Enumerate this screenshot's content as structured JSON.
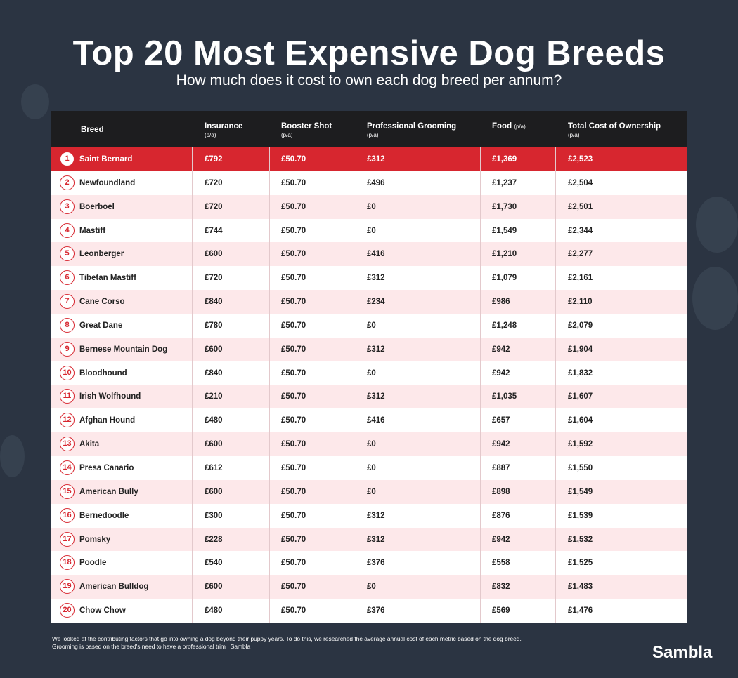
{
  "header": {
    "title": "Top 20 Most Expensive Dog Breeds",
    "subtitle": "How much does it cost to own each dog breed per annum?"
  },
  "table": {
    "columns": [
      {
        "label": "Breed"
      },
      {
        "label": "Insurance",
        "unit": "(p/a)"
      },
      {
        "label": "Booster Shot",
        "unit": "(p/a)"
      },
      {
        "label": "Professional Grooming",
        "unit": "(p/a)"
      },
      {
        "label": "Food",
        "unit": "(p/a)"
      },
      {
        "label": "Total Cost of Ownership",
        "unit": "(p/a)"
      }
    ],
    "rows": [
      [
        "1",
        "Saint Bernard",
        "£792",
        "£50.70",
        "£312",
        "£1,369",
        "£2,523"
      ],
      [
        "2",
        "Newfoundland",
        "£720",
        "£50.70",
        "£496",
        "£1,237",
        "£2,504"
      ],
      [
        "3",
        "Boerboel",
        "£720",
        "£50.70",
        "£0",
        "£1,730",
        "£2,501"
      ],
      [
        "4",
        "Mastiff",
        "£744",
        "£50.70",
        "£0",
        "£1,549",
        "£2,344"
      ],
      [
        "5",
        "Leonberger",
        "£600",
        "£50.70",
        "£416",
        "£1,210",
        "£2,277"
      ],
      [
        "6",
        "Tibetan Mastiff",
        "£720",
        "£50.70",
        "£312",
        "£1,079",
        "£2,161"
      ],
      [
        "7",
        "Cane Corso",
        "£840",
        "£50.70",
        "£234",
        "£986",
        "£2,110"
      ],
      [
        "8",
        "Great Dane",
        "£780",
        "£50.70",
        "£0",
        "£1,248",
        "£2,079"
      ],
      [
        "9",
        "Bernese Mountain Dog",
        "£600",
        "£50.70",
        "£312",
        "£942",
        "£1,904"
      ],
      [
        "10",
        "Bloodhound",
        "£840",
        "£50.70",
        "£0",
        "£942",
        "£1,832"
      ],
      [
        "11",
        "Irish Wolfhound",
        "£210",
        "£50.70",
        "£312",
        "£1,035",
        "£1,607"
      ],
      [
        "12",
        "Afghan Hound",
        "£480",
        "£50.70",
        "£416",
        "£657",
        "£1,604"
      ],
      [
        "13",
        "Akita",
        "£600",
        "£50.70",
        "£0",
        "£942",
        "£1,592"
      ],
      [
        "14",
        "Presa Canario",
        "£612",
        "£50.70",
        "£0",
        "£887",
        "£1,550"
      ],
      [
        "15",
        "American Bully",
        "£600",
        "£50.70",
        "£0",
        "£898",
        "£1,549"
      ],
      [
        "16",
        "Bernedoodle",
        "£300",
        "£50.70",
        "£312",
        "£876",
        "£1,539"
      ],
      [
        "17",
        "Pomsky",
        "£228",
        "£50.70",
        "£312",
        "£942",
        "£1,532"
      ],
      [
        "18",
        "Poodle",
        "£540",
        "£50.70",
        "£376",
        "£558",
        "£1,525"
      ],
      [
        "19",
        "American Bulldog",
        "£600",
        "£50.70",
        "£0",
        "£832",
        "£1,483"
      ],
      [
        "20",
        "Chow Chow",
        "£480",
        "£50.70",
        "£376",
        "£569",
        "£1,476"
      ]
    ]
  },
  "footer": {
    "note": [
      "We looked at the contributing factors that go into owning a dog beyond their puppy years. To do this, we researched the average annual cost of each metric based on the dog breed.",
      "Grooming is based on the breed's need to have a professional trim | Sambla"
    ],
    "brand": "Sambla"
  }
}
